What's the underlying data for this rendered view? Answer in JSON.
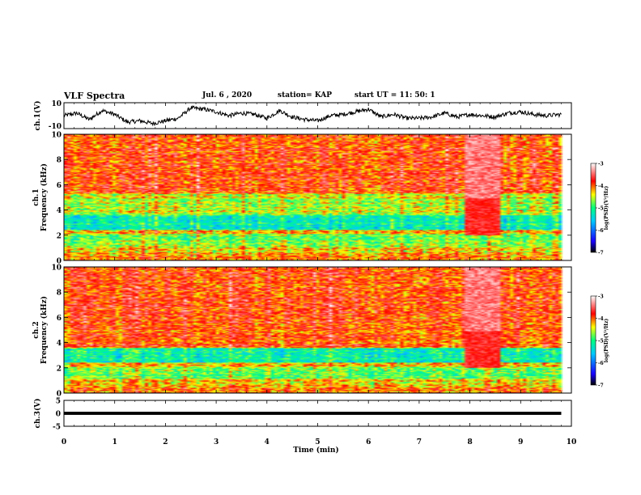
{
  "header": {
    "title": "VLF Spectra",
    "date": "Jul. 6 , 2020",
    "station": "station= KAP",
    "start": "start UT = 11: 50: 1"
  },
  "colors": {
    "trace": "#000000",
    "colormap": [
      "#000000",
      "#1a00ff",
      "#00c8ff",
      "#00ff80",
      "#ffff00",
      "#ff0000",
      "#ffffff"
    ]
  },
  "chart_data": [
    {
      "type": "line",
      "panel": "ch1-waveform",
      "ylabel": "ch.1(V)",
      "ylim": [
        -10,
        10
      ],
      "yticks": [
        10,
        -10
      ],
      "x": [
        0,
        0.25,
        0.5,
        0.75,
        1.0,
        1.25,
        1.5,
        1.75,
        2.0,
        2.25,
        2.5,
        2.75,
        3.0,
        3.25,
        3.5,
        3.75,
        4.0,
        4.25,
        4.5,
        4.75,
        5.0,
        5.25,
        5.5,
        5.75,
        6.0,
        6.25,
        6.5,
        6.75,
        7.0,
        7.25,
        7.5,
        7.75,
        8.0,
        8.25,
        8.5,
        8.75,
        9.0,
        9.25,
        9.5,
        9.8
      ],
      "y": [
        0,
        2,
        -3,
        4,
        1,
        -5,
        -4,
        -6,
        -4,
        -2,
        6,
        5,
        3,
        0,
        2,
        1,
        -2,
        4,
        -1,
        -3,
        -4,
        0,
        1,
        3,
        5,
        -1,
        1,
        -2,
        -2,
        -1,
        2,
        -1,
        1,
        0,
        -1,
        2,
        3,
        1,
        0,
        1
      ]
    },
    {
      "type": "heatmap",
      "panel": "ch1-spectrogram",
      "ylabel": "ch.1 Frequency (kHz)",
      "ylim": [
        0,
        10
      ],
      "yticks": [
        0,
        2,
        4,
        6,
        8,
        10
      ],
      "colorbar": {
        "label": "log(PSD)(V²/Hz)",
        "range": [
          -7,
          -3
        ],
        "ticks": [
          -3,
          -4,
          -5,
          -6,
          -7
        ]
      }
    },
    {
      "type": "heatmap",
      "panel": "ch2-spectrogram",
      "ylabel": "ch.2 Frequency (kHz)",
      "ylim": [
        0,
        10
      ],
      "yticks": [
        0,
        2,
        4,
        6,
        8,
        10
      ],
      "colorbar": {
        "label": "log(PSD)(V²/Hz)",
        "range": [
          -7,
          -3
        ],
        "ticks": [
          -3,
          -4,
          -5,
          -6,
          -7
        ]
      }
    },
    {
      "type": "line",
      "panel": "ch3-waveform",
      "ylabel": "ch.3(V)",
      "ylim": [
        -5,
        5
      ],
      "yticks": [
        5,
        0,
        -5
      ],
      "x": [
        0,
        9.8
      ],
      "y": [
        0,
        0
      ],
      "band_halfwidth": 0.6
    }
  ],
  "xaxis": {
    "label": "Time (min)",
    "range": [
      0,
      10
    ],
    "ticks": [
      "0",
      "1",
      "2",
      "3",
      "4",
      "5",
      "6",
      "7",
      "8",
      "9",
      "10"
    ]
  }
}
